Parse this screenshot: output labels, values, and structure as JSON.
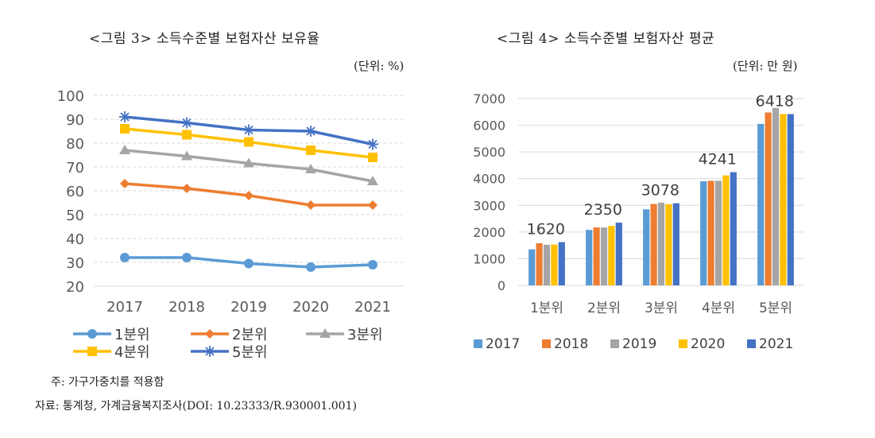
{
  "charts": [
    {
      "title": "<그림 3> 소득수준별 보험자산 보유율",
      "unit": "(단위: %)",
      "chart_data": {
        "type": "line",
        "x": [
          "2017",
          "2018",
          "2019",
          "2020",
          "2021"
        ],
        "ylim": [
          20,
          100
        ],
        "yticks": [
          20,
          30,
          40,
          50,
          60,
          70,
          80,
          90,
          100
        ],
        "grid": true,
        "legend": "bottom",
        "series": [
          {
            "name": "1분위",
            "color": "#5B9BD5",
            "marker": "circle",
            "values": [
              32,
              32,
              29.5,
              28,
              29
            ]
          },
          {
            "name": "2분위",
            "color": "#ED7D31",
            "marker": "diamond",
            "values": [
              63,
              61,
              58,
              54,
              54
            ]
          },
          {
            "name": "3분위",
            "color": "#A5A5A5",
            "marker": "triangle",
            "values": [
              77,
              74.5,
              71.5,
              69,
              64
            ]
          },
          {
            "name": "4분위",
            "color": "#FFC000",
            "marker": "square",
            "values": [
              86,
              83.5,
              80.5,
              77,
              74
            ]
          },
          {
            "name": "5분위",
            "color": "#4472C4",
            "marker": "star",
            "values": [
              91,
              88.5,
              85.5,
              85,
              79.5
            ]
          }
        ]
      }
    },
    {
      "title": "<그림 4> 소득수준별 보험자산 평균",
      "unit": "(단위: 만 원)",
      "chart_data": {
        "type": "bar",
        "categories": [
          "1분위",
          "2분위",
          "3분위",
          "4분위",
          "5분위"
        ],
        "ylim": [
          0,
          7000
        ],
        "yticks": [
          0,
          1000,
          2000,
          3000,
          4000,
          5000,
          6000,
          7000
        ],
        "grid": true,
        "legend": "bottom",
        "series": [
          {
            "name": "2017",
            "color": "#5B9BD5",
            "values": [
              1350,
              2080,
              2850,
              3900,
              6050
            ]
          },
          {
            "name": "2018",
            "color": "#ED7D31",
            "values": [
              1580,
              2170,
              3050,
              3920,
              6480
            ]
          },
          {
            "name": "2019",
            "color": "#A5A5A5",
            "values": [
              1520,
              2170,
              3100,
              3920,
              6650
            ]
          },
          {
            "name": "2020",
            "color": "#FFC000",
            "values": [
              1530,
              2230,
              3040,
              4120,
              6420
            ]
          },
          {
            "name": "2021",
            "color": "#4472C4",
            "values": [
              1620,
              2350,
              3078,
              4241,
              6418
            ]
          }
        ],
        "data_labels": [
          {
            "category_index": 0,
            "series_index": 4,
            "text": "1620"
          },
          {
            "category_index": 1,
            "series_index": 4,
            "text": "2350"
          },
          {
            "category_index": 2,
            "series_index": 4,
            "text": "3078"
          },
          {
            "category_index": 3,
            "series_index": 4,
            "text": "4241"
          },
          {
            "category_index": 4,
            "series_index": 4,
            "text": "6418"
          }
        ]
      }
    }
  ],
  "notes": {
    "note1": "주: 가구가중치를 적용함",
    "note2": "자료: 통계청, 가계금융복지조사(DOI: 10.23333/R.930001.001)"
  }
}
